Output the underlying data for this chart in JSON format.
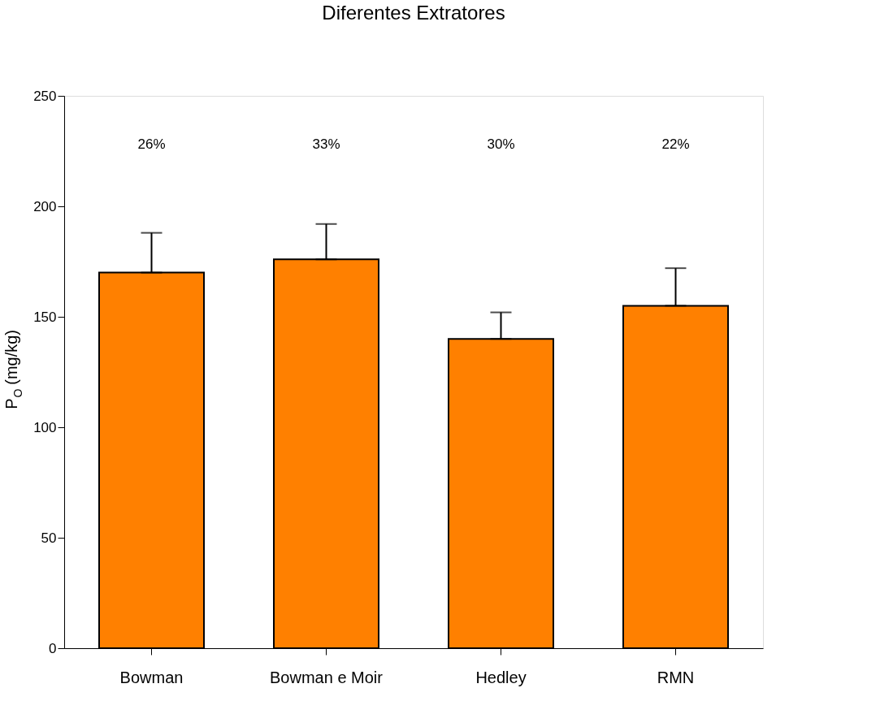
{
  "chart_data": {
    "type": "bar",
    "title": "Diferentes Extratores",
    "ylabel": "P$_{O}$ (mg/kg)",
    "categories": [
      "Bowman",
      "Bowman e Moir",
      "Hedley",
      "RMN"
    ],
    "values": [
      170,
      176,
      140,
      155
    ],
    "errors": [
      [
        170,
        188
      ],
      [
        176,
        192
      ],
      [
        140,
        152
      ],
      [
        155,
        172
      ]
    ],
    "color": "#ff8000",
    "ylim": [
      0,
      250
    ],
    "yticks": [
      0,
      50,
      100,
      150,
      200,
      250
    ],
    "annotations": [
      "26%",
      "33%",
      "30%",
      "22%"
    ],
    "grid": false
  }
}
